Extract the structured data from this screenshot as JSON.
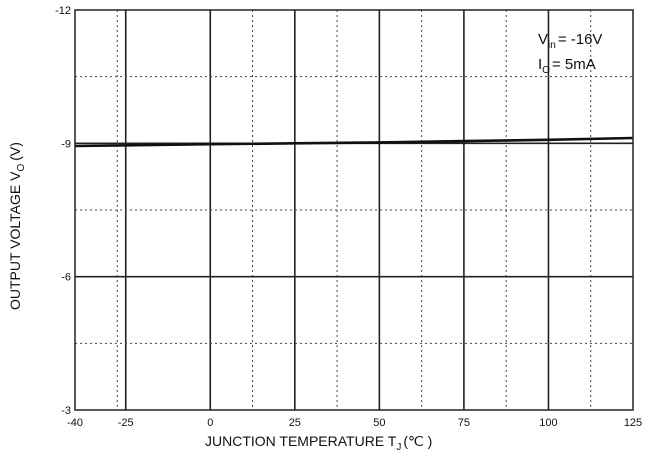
{
  "chart_data": {
    "type": "line",
    "xlabel": "JUNCTION TEMPERATURE T",
    "xlabel_sub": "J",
    "xlabel_unit": "(℃ )",
    "ylabel": "OUTPUT VOLTAGE V",
    "ylabel_sub": "O",
    "ylabel_unit": "(V)",
    "xlim": [
      -40,
      125
    ],
    "ylim": [
      -3,
      -12
    ],
    "y_axis_direction": "downward-positive (magnitude increases upward)",
    "x_ticks": [
      "-40",
      "-25",
      "0",
      "25",
      "50",
      "75",
      "100",
      "125"
    ],
    "y_ticks": [
      "-12",
      "-9",
      "-6",
      "-3"
    ],
    "grid": "solid at labeled x ticks and y ticks; dotted at -10.5, -7.5, -4.5 and x midpoints",
    "annotations": [
      {
        "text": "V",
        "sub": "in",
        "rest": "= -16V"
      },
      {
        "text": "I",
        "sub": "O",
        "rest": "= 5mA"
      }
    ],
    "series": [
      {
        "x": [
          -40,
          0,
          25,
          50,
          75,
          100,
          125
        ],
        "y": [
          -8.94,
          -8.98,
          -9.0,
          -9.02,
          -9.05,
          -9.08,
          -9.12
        ]
      }
    ]
  }
}
